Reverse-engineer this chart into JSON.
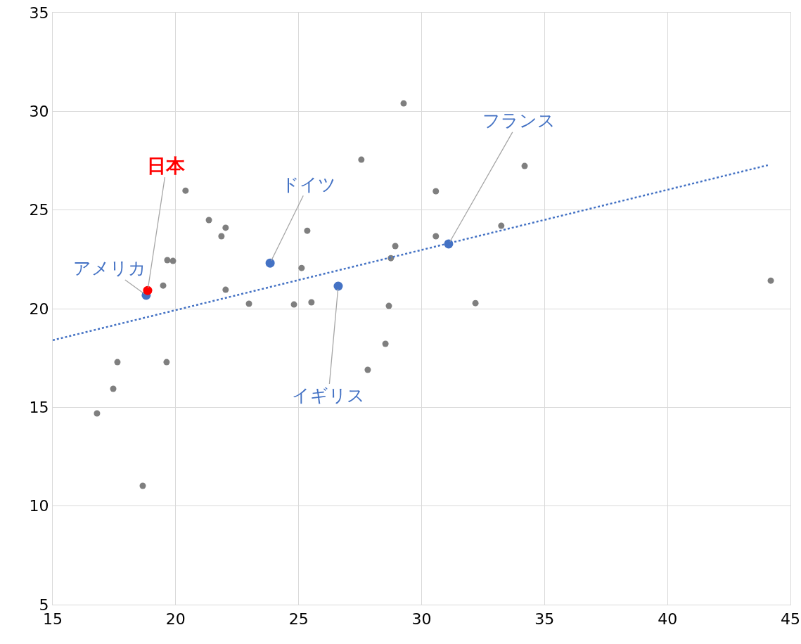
{
  "chart_data": {
    "type": "scatter",
    "xlim": [
      15,
      45
    ],
    "ylim": [
      5,
      35
    ],
    "xticks": [
      15,
      20,
      25,
      30,
      35,
      40,
      45
    ],
    "yticks": [
      5,
      10,
      15,
      20,
      25,
      30,
      35
    ],
    "grid": true,
    "marker": "circle",
    "series": [
      {
        "color": "#7f7f7f",
        "x": [
          16.8,
          17.46,
          17.63,
          18.66,
          19.49,
          19.66,
          19.89,
          19.63,
          20.4,
          21.35,
          21.86,
          22.03,
          22.03,
          22.98,
          24.81,
          25.12,
          25.35,
          25.52,
          27.55,
          27.81,
          28.53,
          28.67,
          28.75,
          28.93,
          29.27,
          30.58,
          30.58,
          32.19,
          33.24,
          34.19,
          44.2
        ],
        "values": [
          14.69,
          15.94,
          17.29,
          11.02,
          21.17,
          22.46,
          22.42,
          17.29,
          25.98,
          24.49,
          23.67,
          24.1,
          20.96,
          20.25,
          20.21,
          22.06,
          23.95,
          20.32,
          27.55,
          16.9,
          18.22,
          20.14,
          22.56,
          23.17,
          30.4,
          25.95,
          23.67,
          20.28,
          24.2,
          27.23,
          21.42
        ]
      },
      {
        "color": "#4472c4",
        "x": [
          18.8,
          23.84,
          26.61,
          31.1
        ],
        "values": [
          20.68,
          22.31,
          21.14,
          23.28
        ]
      },
      {
        "color": "#ff0000",
        "x": [
          18.86
        ],
        "values": [
          20.92
        ]
      },
      {
        "type": "line",
        "color": "#4472c4",
        "line_style": "dotted",
        "marker": "none",
        "x": [
          15,
          44.08
        ],
        "values": [
          18.4,
          27.27
        ]
      }
    ],
    "annotations": [
      {
        "text": "日本",
        "x": 18.86,
        "y": 20.92
      },
      {
        "text": "アメリカ",
        "x": 18.8,
        "y": 20.68
      },
      {
        "text": "ドイツ",
        "x": 23.84,
        "y": 22.31
      },
      {
        "text": "イギリス",
        "x": 26.61,
        "y": 21.14
      },
      {
        "text": "フランス",
        "x": 31.1,
        "y": 23.28
      }
    ]
  }
}
